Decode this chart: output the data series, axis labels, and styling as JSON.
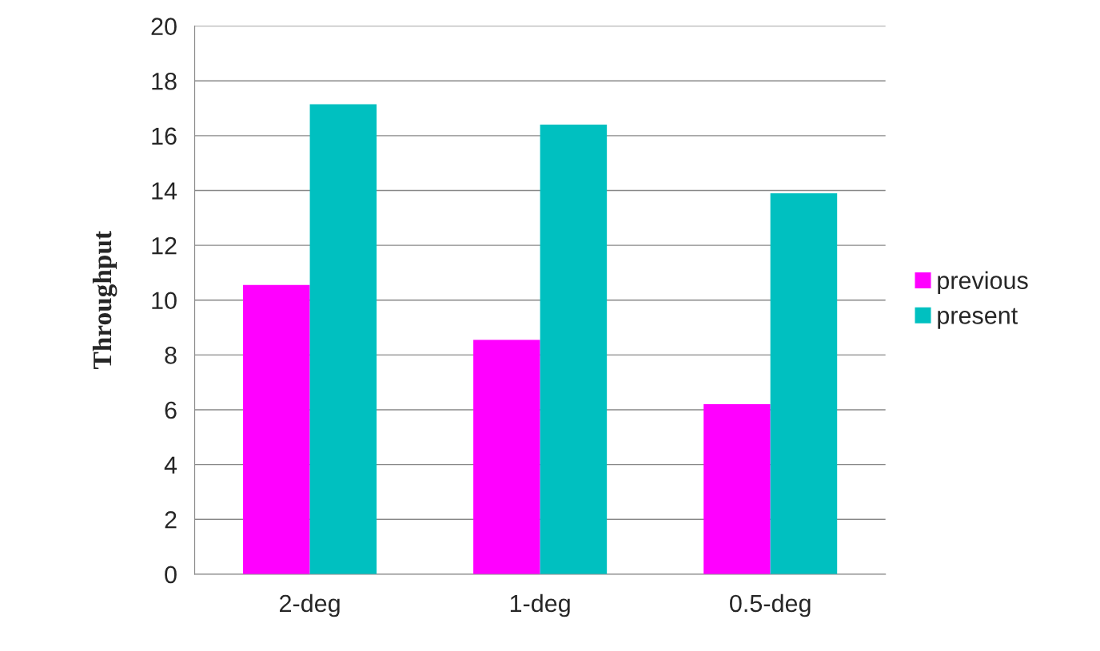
{
  "chart_data": {
    "type": "bar",
    "ylabel": "Throughput",
    "categories": [
      "2-deg",
      "1-deg",
      "0.5-deg"
    ],
    "series": [
      {
        "name": "previous",
        "color": "#ff00ff",
        "values": [
          10.55,
          8.55,
          6.2
        ]
      },
      {
        "name": "present",
        "color": "#00c0c0",
        "values": [
          17.15,
          16.4,
          13.9
        ]
      }
    ],
    "ylim": [
      0,
      20
    ],
    "yticks": [
      0,
      2,
      4,
      6,
      8,
      10,
      12,
      14,
      16,
      18,
      20
    ],
    "grid": "y",
    "legend": "right"
  }
}
